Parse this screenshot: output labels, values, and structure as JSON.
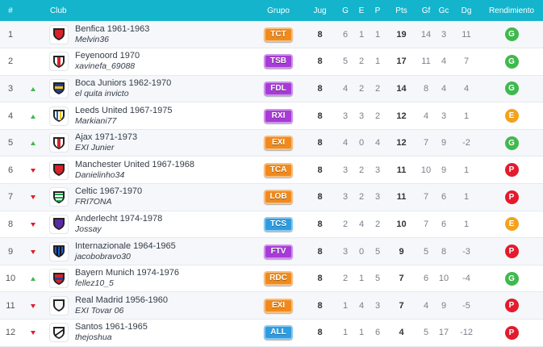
{
  "header": {
    "pos": "#",
    "club": "Club",
    "grupo": "Grupo",
    "jug": "Jug",
    "g": "G",
    "e": "E",
    "p": "P",
    "pts": "Pts",
    "gf": "Gf",
    "gc": "Gc",
    "dg": "Dg",
    "rend": "Rendimiento"
  },
  "colors": {
    "header_bg": "#13b4cc",
    "up": "#3fb94d",
    "down": "#e31b2c",
    "rend_G": "#3fb94d",
    "rend_E": "#f3a21c",
    "rend_P": "#e31b2c",
    "badge_orange": "#f08a1c",
    "badge_purple": "#a63bd6",
    "badge_blue": "#2f9ce0"
  },
  "rows": [
    {
      "pos": "1",
      "trend": "none",
      "crest": "shield-red",
      "club": "Benfica 1961-1963",
      "user": "Melvin36",
      "grupo": "TCT",
      "badge": "orange",
      "jug": "8",
      "g": "6",
      "e": "1",
      "p": "1",
      "pts": "19",
      "gf": "14",
      "gc": "3",
      "dg": "11",
      "rend": "G"
    },
    {
      "pos": "2",
      "trend": "none",
      "crest": "shield-red-white",
      "club": "Feyenoord 1970",
      "user": "xavinefa_69088",
      "grupo": "TSB",
      "badge": "purple",
      "jug": "8",
      "g": "5",
      "e": "2",
      "p": "1",
      "pts": "17",
      "gf": "11",
      "gc": "4",
      "dg": "7",
      "rend": "G"
    },
    {
      "pos": "3",
      "trend": "up",
      "crest": "shield-blue-yellow",
      "club": "Boca Juniors 1962-1970",
      "user": "el quita invicto",
      "grupo": "FDL",
      "badge": "purple",
      "jug": "8",
      "g": "4",
      "e": "2",
      "p": "2",
      "pts": "14",
      "gf": "8",
      "gc": "4",
      "dg": "4",
      "rend": "G"
    },
    {
      "pos": "4",
      "trend": "up",
      "crest": "shield-blue-yellow-stripes",
      "club": "Leeds United 1967-1975",
      "user": "Markiani77",
      "grupo": "RXI",
      "badge": "purple",
      "jug": "8",
      "g": "3",
      "e": "3",
      "p": "2",
      "pts": "12",
      "gf": "4",
      "gc": "3",
      "dg": "1",
      "rend": "E"
    },
    {
      "pos": "5",
      "trend": "up",
      "crest": "shield-red-white",
      "club": "Ajax 1971-1973",
      "user": "EXI Junier",
      "grupo": "EXI",
      "badge": "orange",
      "jug": "8",
      "g": "4",
      "e": "0",
      "p": "4",
      "pts": "12",
      "gf": "7",
      "gc": "9",
      "dg": "-2",
      "rend": "G"
    },
    {
      "pos": "6",
      "trend": "down",
      "crest": "shield-red",
      "club": "Manchester United 1967-1968",
      "user": "Danielinho34",
      "grupo": "TCA",
      "badge": "orange",
      "jug": "8",
      "g": "3",
      "e": "2",
      "p": "3",
      "pts": "11",
      "gf": "10",
      "gc": "9",
      "dg": "1",
      "rend": "P"
    },
    {
      "pos": "7",
      "trend": "down",
      "crest": "shield-green-hoops",
      "club": "Celtic 1967-1970",
      "user": "FRI7ONA",
      "grupo": "LOB",
      "badge": "orange",
      "jug": "8",
      "g": "3",
      "e": "2",
      "p": "3",
      "pts": "11",
      "gf": "7",
      "gc": "6",
      "dg": "1",
      "rend": "P"
    },
    {
      "pos": "8",
      "trend": "down",
      "crest": "shield-purple",
      "club": "Anderlecht 1974-1978",
      "user": "Jossay",
      "grupo": "TCS",
      "badge": "blue",
      "jug": "8",
      "g": "2",
      "e": "4",
      "p": "2",
      "pts": "10",
      "gf": "7",
      "gc": "6",
      "dg": "1",
      "rend": "E"
    },
    {
      "pos": "9",
      "trend": "down",
      "crest": "shield-blue-black-stripes",
      "club": "Internazionale 1964-1965",
      "user": "jacobobravo30",
      "grupo": "FTV",
      "badge": "purple",
      "jug": "8",
      "g": "3",
      "e": "0",
      "p": "5",
      "pts": "9",
      "gf": "5",
      "gc": "8",
      "dg": "-3",
      "rend": "P"
    },
    {
      "pos": "10",
      "trend": "up",
      "crest": "shield-red-blue",
      "club": "Bayern Munich 1974-1976",
      "user": "fellez10_5",
      "grupo": "RDC",
      "badge": "orange",
      "jug": "8",
      "g": "2",
      "e": "1",
      "p": "5",
      "pts": "7",
      "gf": "6",
      "gc": "10",
      "dg": "-4",
      "rend": "G"
    },
    {
      "pos": "11",
      "trend": "down",
      "crest": "shield-white",
      "club": "Real Madrid 1956-1960",
      "user": "EXI Tovar 06",
      "grupo": "EXI",
      "badge": "orange",
      "jug": "8",
      "g": "1",
      "e": "4",
      "p": "3",
      "pts": "7",
      "gf": "4",
      "gc": "9",
      "dg": "-5",
      "rend": "P"
    },
    {
      "pos": "12",
      "trend": "down",
      "crest": "shield-black-white-stripes",
      "club": "Santos 1961-1965",
      "user": "thejoshua",
      "grupo": "ALL",
      "badge": "blue",
      "jug": "8",
      "g": "1",
      "e": "1",
      "p": "6",
      "pts": "4",
      "gf": "5",
      "gc": "17",
      "dg": "-12",
      "rend": "P"
    }
  ]
}
